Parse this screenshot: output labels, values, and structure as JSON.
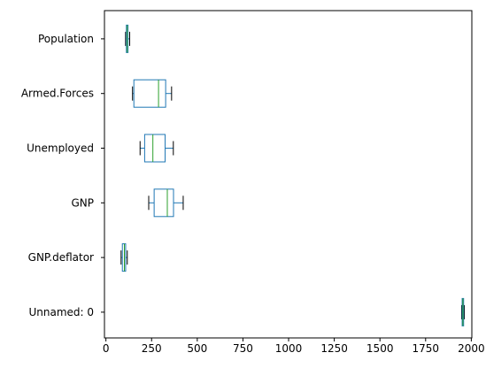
{
  "chart_data": {
    "type": "boxplot",
    "orientation": "horizontal",
    "title": "",
    "xlabel": "",
    "ylabel": "",
    "xlim": [
      -8,
      2003
    ],
    "x_ticks": [
      0,
      250,
      500,
      750,
      1000,
      1250,
      1500,
      1750,
      2000
    ],
    "grid": false,
    "legend": null,
    "colors": {
      "box": "#1f77b4",
      "median": "#2ca02c",
      "whisker": "#1f77b4",
      "cap": "#000000"
    },
    "categories": [
      "Population",
      "Armed.Forces",
      "Unemployed",
      "GNP",
      "GNP.deflator",
      "Unnamed: 0"
    ],
    "boxes": [
      {
        "label": "Population",
        "whislo": 107.6,
        "q1": 111.8,
        "med": 116.8,
        "q3": 120.9,
        "whishi": 130.1
      },
      {
        "label": "Armed.Forces",
        "whislo": 145.6,
        "q1": 153.0,
        "med": 288.0,
        "q3": 327.0,
        "whishi": 359.4
      },
      {
        "label": "Unemployed",
        "whislo": 187.0,
        "q1": 212.0,
        "med": 257.0,
        "q3": 324.0,
        "whishi": 369.0
      },
      {
        "label": "GNP",
        "whislo": 234.3,
        "q1": 264.0,
        "med": 336.0,
        "q3": 370.0,
        "whishi": 423.0
      },
      {
        "label": "GNP.deflator",
        "whislo": 83.0,
        "q1": 90.0,
        "med": 101.0,
        "q3": 108.0,
        "whishi": 116.9
      },
      {
        "label": "Unnamed: 0",
        "whislo": 1947,
        "q1": 1950,
        "med": 1954,
        "q3": 1958,
        "whishi": 1962
      }
    ]
  }
}
